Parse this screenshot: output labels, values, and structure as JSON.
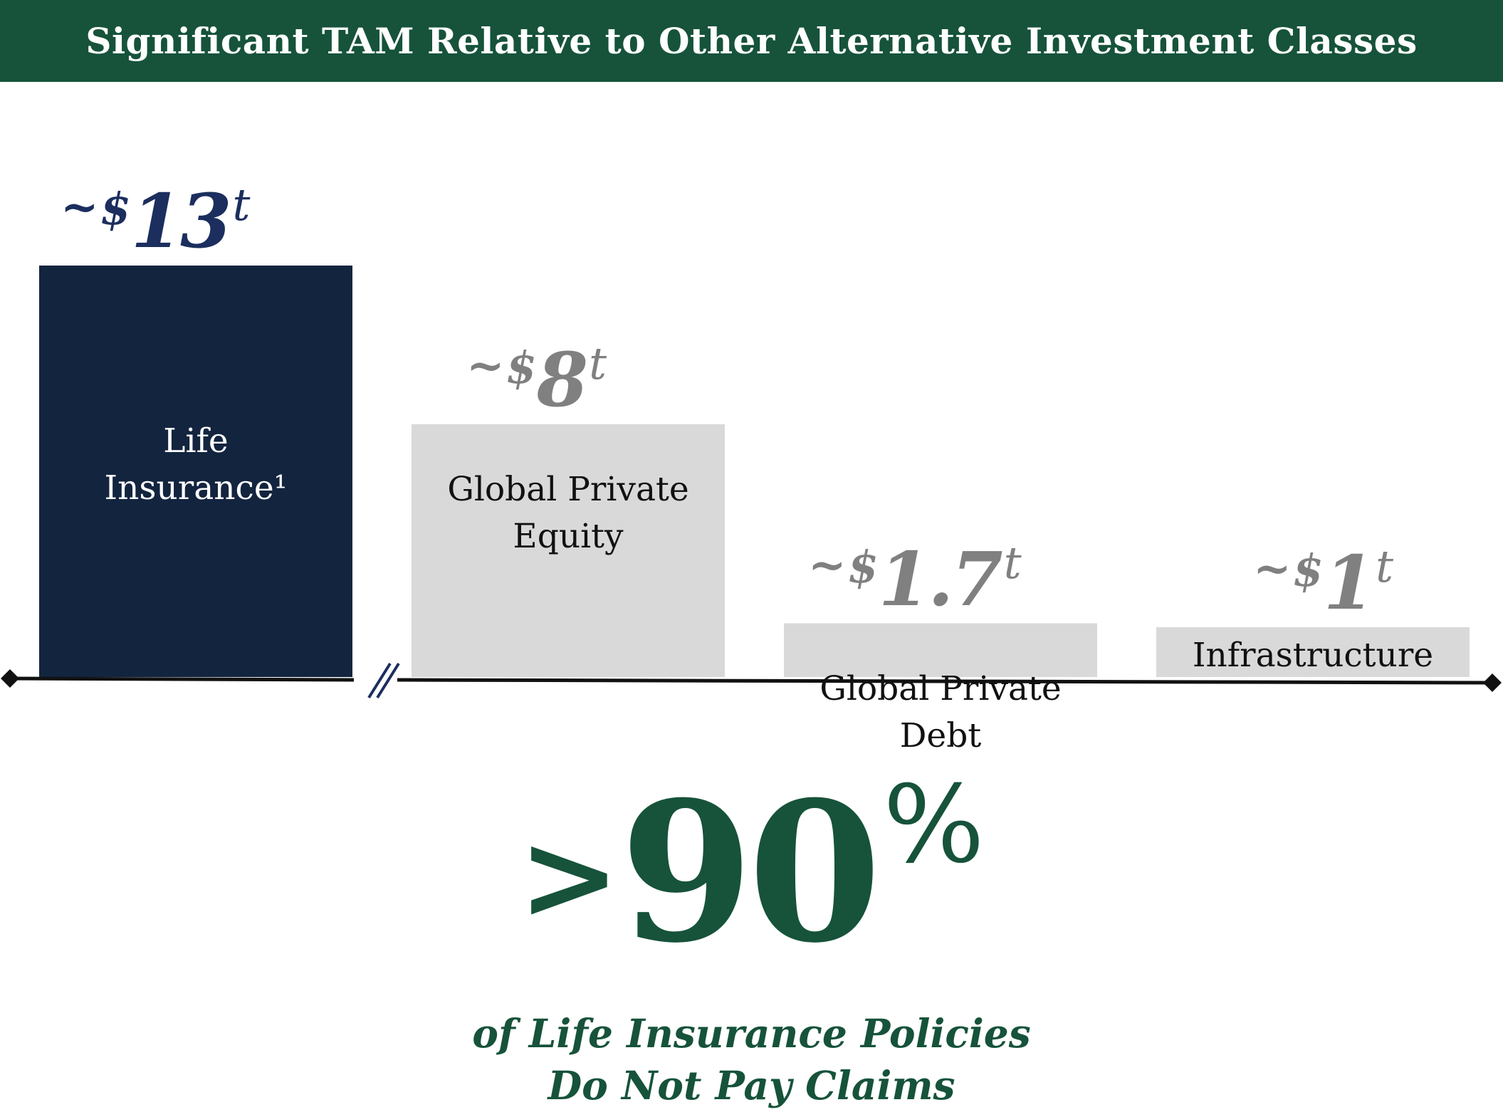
{
  "header": {
    "title": "Significant TAM Relative to Other Alternative Investment Classes"
  },
  "chart_data": {
    "type": "bar",
    "title": "Significant TAM Relative to Other Alternative Investment Classes",
    "categories": [
      "Life Insurance¹",
      "Global Private Equity",
      "Global Private Debt",
      "Infrastructure"
    ],
    "values": [
      13,
      8,
      1.7,
      1
    ],
    "value_labels": [
      {
        "prefix": "~",
        "currency": "$",
        "value": "13",
        "unit": "t"
      },
      {
        "prefix": "~",
        "currency": "$",
        "value": "8",
        "unit": "t"
      },
      {
        "prefix": "~",
        "currency": "$",
        "value": "1.7",
        "unit": "t"
      },
      {
        "prefix": "~",
        "currency": "$",
        "value": "1",
        "unit": "t"
      }
    ],
    "axis_break_after_first": true,
    "colors": [
      "#13243f",
      "#d9d9d9",
      "#d9d9d9",
      "#d9d9d9"
    ],
    "value_label_colors": [
      "#1b2e5e",
      "#808080",
      "#808080",
      "#808080"
    ],
    "bar_label_colors": [
      "#ffffff",
      "#111111",
      "#111111",
      "#111111"
    ]
  },
  "stat": {
    "prefix": ">",
    "value": "90",
    "suffix": "%",
    "caption_line1": "of Life Insurance Policies",
    "caption_line2": "Do Not Pay Claims"
  },
  "colors": {
    "brand_green": "#16533a",
    "navy": "#13243f",
    "grey": "#d9d9d9"
  }
}
